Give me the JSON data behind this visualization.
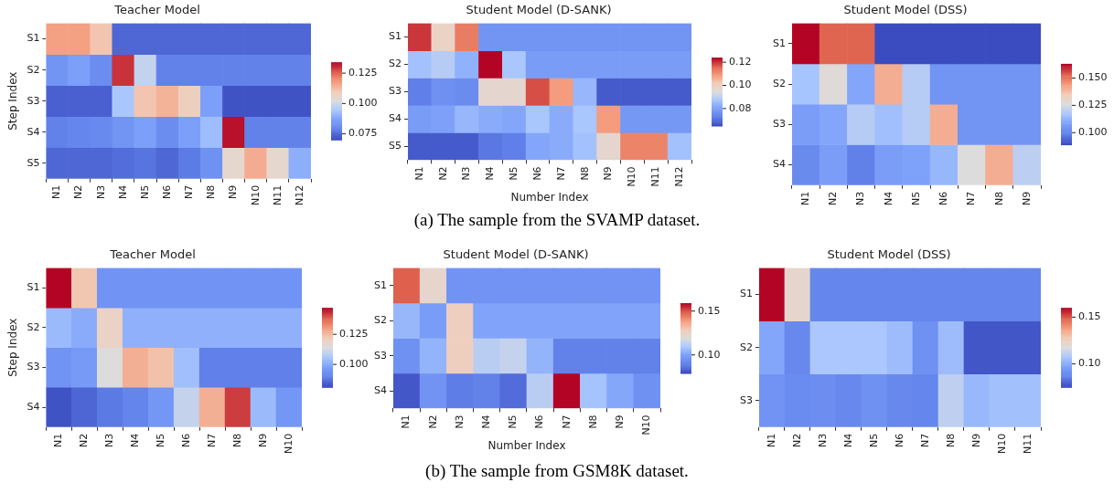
{
  "chart_data": [
    {
      "type": "heatmap",
      "title": "Teacher Model",
      "ylabel": "Step Index",
      "annotations": [
        "(a) The sample from the SVAMP dataset."
      ],
      "categories": [
        "N1",
        "N2",
        "N3",
        "N4",
        "N5",
        "N6",
        "N7",
        "N8",
        "N9",
        "N10",
        "N11",
        "N12"
      ],
      "y_categories": [
        "S1",
        "S2",
        "S3",
        "S4",
        "S5"
      ],
      "cells": [
        [
          0.117,
          0.117,
          0.111,
          0.074,
          0.074,
          0.074,
          0.074,
          0.074,
          0.074,
          0.074,
          0.074,
          0.074
        ],
        [
          0.083,
          0.086,
          0.081,
          0.13,
          0.098,
          0.078,
          0.078,
          0.078,
          0.078,
          0.078,
          0.078,
          0.078
        ],
        [
          0.073,
          0.073,
          0.073,
          0.094,
          0.111,
          0.114,
          0.108,
          0.086,
          0.071,
          0.071,
          0.071,
          0.071
        ],
        [
          0.078,
          0.079,
          0.08,
          0.083,
          0.086,
          0.081,
          0.086,
          0.092,
          0.133,
          0.078,
          0.078,
          0.078
        ],
        [
          0.074,
          0.074,
          0.074,
          0.075,
          0.076,
          0.074,
          0.077,
          0.082,
          0.105,
          0.115,
          0.105,
          0.089
        ]
      ],
      "clim": [
        0.07,
        0.134
      ],
      "cticks": [
        {
          "value": 0.075,
          "label": "0.075"
        },
        {
          "value": 0.1,
          "label": "0.100"
        },
        {
          "value": 0.125,
          "label": "0.125"
        }
      ]
    },
    {
      "type": "heatmap",
      "title": "Student Model (D-SANK)",
      "xlabel": "Number Index",
      "categories": [
        "N1",
        "N2",
        "N3",
        "N4",
        "N5",
        "N6",
        "N7",
        "N8",
        "N9",
        "N10",
        "N11",
        "N12"
      ],
      "y_categories": [
        "S1",
        "S2",
        "S3",
        "S4",
        "S5"
      ],
      "cells": [
        [
          0.12,
          0.099,
          0.113,
          0.077,
          0.077,
          0.077,
          0.077,
          0.077,
          0.077,
          0.077,
          0.077,
          0.077
        ],
        [
          0.086,
          0.089,
          0.083,
          0.124,
          0.087,
          0.079,
          0.079,
          0.079,
          0.079,
          0.079,
          0.079,
          0.079
        ],
        [
          0.072,
          0.076,
          0.075,
          0.097,
          0.097,
          0.118,
          0.109,
          0.084,
          0.067,
          0.067,
          0.067,
          0.067
        ],
        [
          0.079,
          0.08,
          0.084,
          0.082,
          0.081,
          0.087,
          0.082,
          0.087,
          0.109,
          0.078,
          0.078,
          0.078
        ],
        [
          0.067,
          0.067,
          0.067,
          0.071,
          0.072,
          0.081,
          0.082,
          0.086,
          0.097,
          0.112,
          0.112,
          0.086
        ]
      ],
      "clim": [
        0.065,
        0.124
      ],
      "cticks": [
        {
          "value": 0.08,
          "label": "0.08"
        },
        {
          "value": 0.1,
          "label": "0.10"
        },
        {
          "value": 0.12,
          "label": "0.12"
        }
      ]
    },
    {
      "type": "heatmap",
      "title": "Student Model (DSS)",
      "categories": [
        "N1",
        "N2",
        "N3",
        "N4",
        "N5",
        "N6",
        "N7",
        "N8",
        "N9"
      ],
      "y_categories": [
        "S1",
        "S2",
        "S3",
        "S4"
      ],
      "cells": [
        [
          0.163,
          0.153,
          0.153,
          0.089,
          0.089,
          0.089,
          0.089,
          0.089,
          0.089
        ],
        [
          0.116,
          0.127,
          0.109,
          0.141,
          0.119,
          0.104,
          0.104,
          0.104,
          0.104
        ],
        [
          0.107,
          0.109,
          0.119,
          0.115,
          0.119,
          0.141,
          0.104,
          0.104,
          0.104
        ],
        [
          0.101,
          0.107,
          0.098,
          0.107,
          0.108,
          0.113,
          0.126,
          0.141,
          0.12
        ]
      ],
      "clim": [
        0.089,
        0.163
      ],
      "cticks": [
        {
          "value": 0.1,
          "label": "0.100"
        },
        {
          "value": 0.125,
          "label": "0.125"
        },
        {
          "value": 0.15,
          "label": "0.150"
        }
      ]
    },
    {
      "type": "heatmap",
      "title": "Teacher Model",
      "ylabel": "Step Index",
      "annotations": [
        "(b) The sample from GSM8K dataset."
      ],
      "categories": [
        "N1",
        "N2",
        "N3",
        "N4",
        "N5",
        "N6",
        "N7",
        "N8",
        "N9",
        "N10"
      ],
      "y_categories": [
        "S1",
        "S2",
        "S3",
        "S4"
      ],
      "cells": [
        [
          0.147,
          0.123,
          0.094,
          0.094,
          0.094,
          0.094,
          0.094,
          0.094,
          0.094,
          0.094
        ],
        [
          0.103,
          0.1,
          0.119,
          0.101,
          0.101,
          0.101,
          0.101,
          0.101,
          0.101,
          0.101
        ],
        [
          0.094,
          0.096,
          0.114,
          0.127,
          0.124,
          0.104,
          0.089,
          0.089,
          0.089,
          0.089
        ],
        [
          0.082,
          0.085,
          0.088,
          0.09,
          0.095,
          0.11,
          0.127,
          0.142,
          0.103,
          0.095
        ]
      ],
      "clim": [
        0.081,
        0.147
      ],
      "cticks": [
        {
          "value": 0.1,
          "label": "0.100"
        },
        {
          "value": 0.125,
          "label": "0.125"
        }
      ]
    },
    {
      "type": "heatmap",
      "title": "Student Model (D-SANK)",
      "xlabel": "Number Index",
      "categories": [
        "N1",
        "N2",
        "N3",
        "N4",
        "N5",
        "N6",
        "N7",
        "N8",
        "N9",
        "N10"
      ],
      "y_categories": [
        "S1",
        "S2",
        "S3",
        "S4"
      ],
      "cells": [
        [
          0.149,
          0.123,
          0.095,
          0.095,
          0.095,
          0.095,
          0.095,
          0.095,
          0.095,
          0.095
        ],
        [
          0.105,
          0.098,
          0.127,
          0.1,
          0.1,
          0.1,
          0.1,
          0.1,
          0.1,
          0.1
        ],
        [
          0.094,
          0.104,
          0.127,
          0.112,
          0.114,
          0.104,
          0.089,
          0.089,
          0.089,
          0.089
        ],
        [
          0.081,
          0.095,
          0.088,
          0.089,
          0.085,
          0.112,
          0.159,
          0.108,
          0.101,
          0.094
        ]
      ],
      "clim": [
        0.079,
        0.159
      ],
      "cticks": [
        {
          "value": 0.1,
          "label": "0.10"
        },
        {
          "value": 0.15,
          "label": "0.15"
        }
      ]
    },
    {
      "type": "heatmap",
      "title": "Student Model (DSS)",
      "categories": [
        "N1",
        "N2",
        "N3",
        "N4",
        "N5",
        "N6",
        "N7",
        "N8",
        "N9",
        "N10",
        "N11"
      ],
      "y_categories": [
        "S1",
        "S2",
        "S3"
      ],
      "cells": [
        [
          0.16,
          0.122,
          0.087,
          0.087,
          0.087,
          0.087,
          0.087,
          0.087,
          0.087,
          0.087,
          0.087
        ],
        [
          0.098,
          0.088,
          0.107,
          0.107,
          0.107,
          0.104,
          0.091,
          0.104,
          0.077,
          0.077,
          0.077
        ],
        [
          0.092,
          0.089,
          0.09,
          0.088,
          0.091,
          0.088,
          0.087,
          0.111,
          0.103,
          0.105,
          0.105
        ]
      ],
      "clim": [
        0.075,
        0.16
      ],
      "cticks": [
        {
          "value": 0.1,
          "label": "0.10"
        },
        {
          "value": 0.15,
          "label": "0.15"
        }
      ]
    }
  ]
}
